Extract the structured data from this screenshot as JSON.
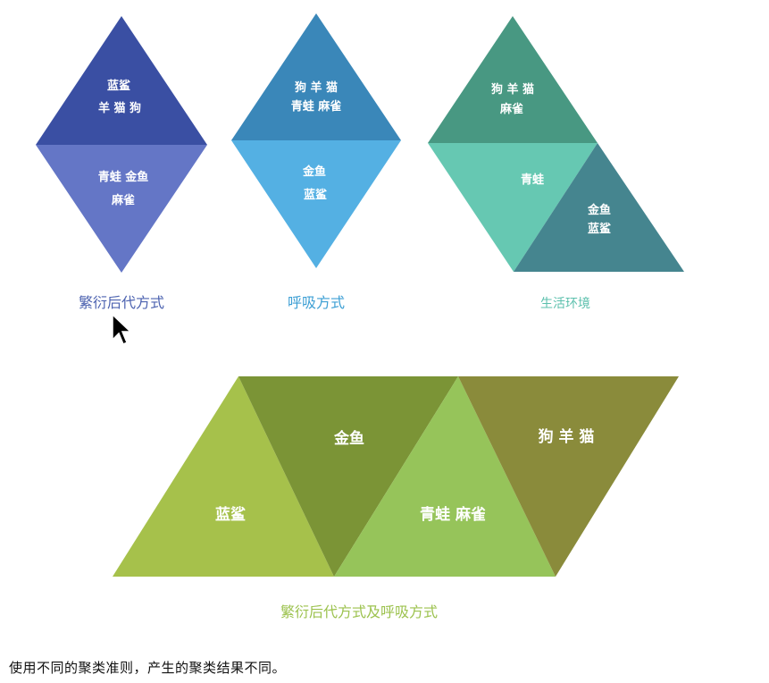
{
  "diagrams": {
    "reproduction": {
      "title": "繁衍后代方式",
      "upper_line1": "蓝鲨",
      "upper_line2": "羊 猫 狗",
      "lower_line1": "青蛙 金鱼",
      "lower_line2": "麻雀"
    },
    "breathing": {
      "title": "呼吸方式",
      "upper_line1": "狗 羊 猫",
      "upper_line2": "青蛙 麻雀",
      "lower_line1": "金鱼",
      "lower_line2": "蓝鲨"
    },
    "habitat": {
      "title": "生活环境",
      "top_line1": "狗 羊 猫",
      "top_line2": "麻雀",
      "middle_label": "青蛙",
      "bottom_line1": "金鱼",
      "bottom_line2": "蓝鲨"
    },
    "combined": {
      "title": "繁衍后代方式及呼吸方式",
      "segment1": "蓝鲨",
      "segment2": "金鱼",
      "segment3": "青蛙 麻雀",
      "segment4": "狗 羊 猫"
    }
  },
  "caption": "使用不同的聚类准则，产生的聚类结果不同。",
  "colors": {
    "reproduction_upper": "#3a4fa3",
    "reproduction_lower": "#6476c6",
    "breathing_upper": "#3a87b9",
    "breathing_lower": "#54b0e3",
    "habitat_top": "#489882",
    "habitat_middle": "#66c8b2",
    "habitat_bottom": "#45858f",
    "combined_1": "#a6c14b",
    "combined_2": "#7b9436",
    "combined_3": "#96c45a",
    "combined_4": "#8a8b3b",
    "title_reproduction": "#4d63b0",
    "title_breathing": "#3d9fd4",
    "title_habitat": "#5cc0ad",
    "title_combined": "#9cc24e"
  },
  "icons": [
    "mouse-cursor-icon"
  ]
}
